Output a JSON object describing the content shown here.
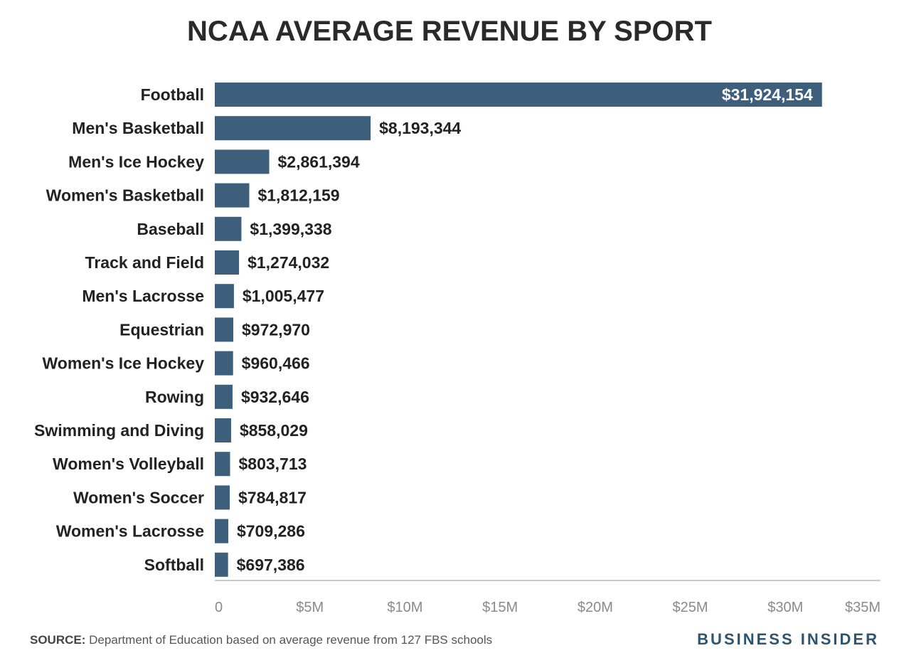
{
  "chart_data": {
    "type": "bar",
    "orientation": "horizontal",
    "title": "NCAA AVERAGE REVENUE BY SPORT",
    "categories": [
      "Football",
      "Men's Basketball",
      "Men's Ice Hockey",
      "Women's Basketball",
      "Baseball",
      "Track and Field",
      "Men's Lacrosse",
      "Equestrian",
      "Women's Ice Hockey",
      "Rowing",
      "Swimming and Diving",
      "Women's Volleyball",
      "Women's Soccer",
      "Women's Lacrosse",
      "Softball"
    ],
    "values": [
      31924154,
      8193344,
      2861394,
      1812159,
      1399338,
      1274032,
      1005477,
      972970,
      960466,
      932646,
      858029,
      803713,
      784817,
      709286,
      697386
    ],
    "value_labels": [
      "$31,924,154",
      "$8,193,344",
      "$2,861,394",
      "$1,812,159",
      "$1,399,338",
      "$1,274,032",
      "$1,005,477",
      "$972,970",
      "$960,466",
      "$932,646",
      "$858,029",
      "$803,713",
      "$784,817",
      "$709,286",
      "$697,386"
    ],
    "xlim": [
      0,
      35000000
    ],
    "xticks": [
      0,
      5000000,
      10000000,
      15000000,
      20000000,
      25000000,
      30000000,
      35000000
    ],
    "xtick_labels": [
      "0",
      "$5M",
      "$10M",
      "$15M",
      "$20M",
      "$25M",
      "$30M",
      "$35M"
    ],
    "xlabel": "",
    "ylabel": "",
    "grid": false
  },
  "colors": {
    "bar": "#3d5f7b",
    "axis": "#c8c8c8",
    "tick_text": "#8a8a8a",
    "label_text": "#222222",
    "inside_label_text": "#ffffff",
    "brand": "#2f5470"
  },
  "footer": {
    "source_label": "SOURCE:",
    "source_text": " Department of Education based on average revenue from 127 FBS schools",
    "brand": "BUSINESS INSIDER"
  }
}
